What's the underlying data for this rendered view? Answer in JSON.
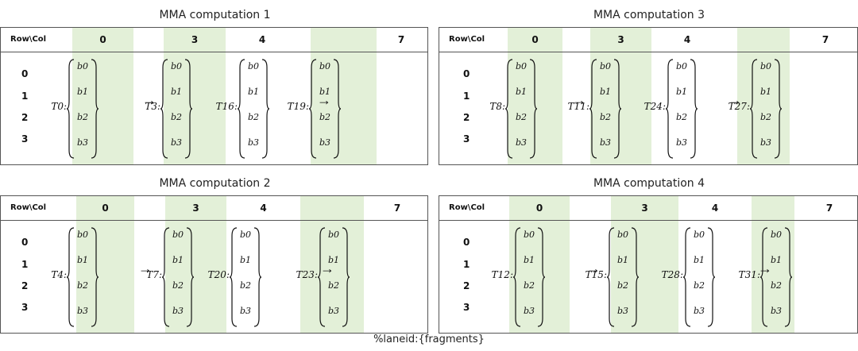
{
  "header_label": "Row\\Col",
  "columns": [
    "0",
    "3",
    "4",
    "7"
  ],
  "rows": [
    "0",
    "1",
    "2",
    "3"
  ],
  "fragments": [
    "b0",
    "b1",
    "b2",
    "b3"
  ],
  "colors": {
    "highlight": "#e3f0d8",
    "border": "#555555"
  },
  "panels": [
    {
      "title": "MMA computation 1",
      "threads": [
        "T0:",
        "T3:",
        "T16:",
        "T19:"
      ]
    },
    {
      "title": "MMA computation 3",
      "threads": [
        "T8:",
        "T11:",
        "T24:",
        "T27:"
      ]
    },
    {
      "title": "MMA computation 2",
      "threads": [
        "T4:",
        "T7:",
        "T20:",
        "T23:"
      ]
    },
    {
      "title": "MMA computation 4",
      "threads": [
        "T12:",
        "T15:",
        "T28:",
        "T31:"
      ]
    }
  ],
  "footer": "%laneid:{fragments}"
}
